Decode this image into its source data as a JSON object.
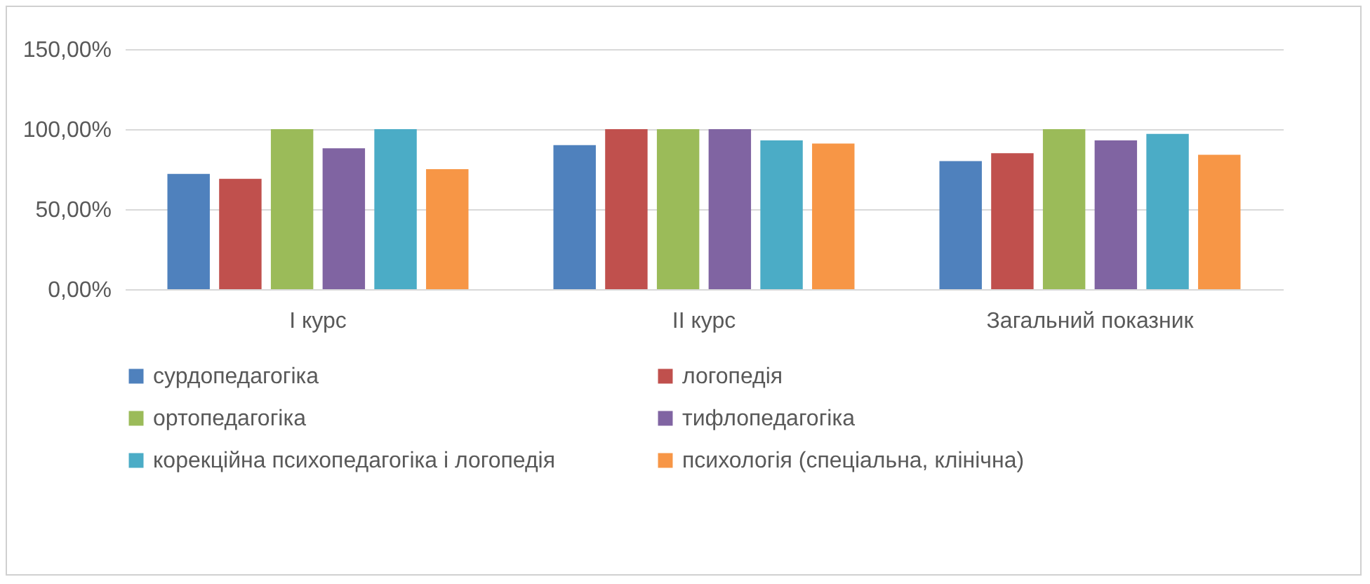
{
  "chart_data": {
    "type": "bar",
    "categories": [
      "І курс",
      "ІІ курс",
      "Загальний показник"
    ],
    "series": [
      {
        "name": "сурдопедагогіка",
        "color": "#4f81bd",
        "values": [
          72,
          90,
          80
        ]
      },
      {
        "name": "логопедія",
        "color": "#c0504d",
        "values": [
          69,
          100,
          85
        ]
      },
      {
        "name": "ортопедагогіка",
        "color": "#9bbb59",
        "values": [
          100,
          100,
          100
        ]
      },
      {
        "name": "тифлопедагогіка",
        "color": "#8064a2",
        "values": [
          88,
          100,
          93
        ]
      },
      {
        "name": "корекційна психопедагогіка і логопедія",
        "color": "#4bacc6",
        "values": [
          100,
          93,
          97
        ]
      },
      {
        "name": "психологія (спеціальна, клінічна)",
        "color": "#f79646",
        "values": [
          75,
          91,
          84
        ]
      }
    ],
    "ylim": [
      0,
      150
    ],
    "yticks": [
      {
        "value": 0,
        "label": "0,00%"
      },
      {
        "value": 50,
        "label": "50,00%"
      },
      {
        "value": 100,
        "label": "100,00%"
      },
      {
        "value": 150,
        "label": "150,00%"
      }
    ],
    "grid": "y",
    "legend": "bottom"
  }
}
